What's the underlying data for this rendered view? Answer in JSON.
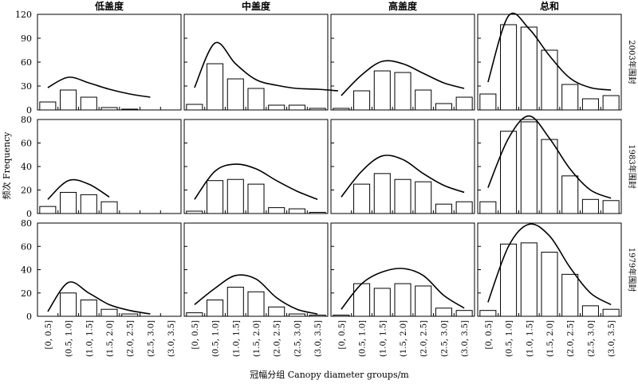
{
  "chart_data": [
    {
      "type": "bar",
      "column": "低盖度",
      "row": "2003年围封",
      "categories": [
        "[0, 0.5]",
        "(0.5, 1.0]",
        "(1.0, 1.5]",
        "(1.5, 2.0]",
        "(2.0, 2.5]",
        "(2.5, 3.0]",
        "(3.0, 3.5]"
      ],
      "values": [
        10,
        25,
        16,
        3,
        1,
        0,
        0
      ],
      "curve": [
        28,
        41,
        34,
        26,
        20,
        16
      ]
    },
    {
      "type": "bar",
      "column": "中盖度",
      "row": "2003年围封",
      "categories": [
        "[0, 0.5]",
        "(0.5, 1.0]",
        "(1.0, 1.5]",
        "(1.5, 2.0]",
        "(2.0, 2.5]",
        "(2.5, 3.0]",
        "(3.0, 3.5]"
      ],
      "values": [
        7,
        58,
        39,
        27,
        6,
        6,
        2
      ],
      "curve": [
        28,
        84,
        58,
        38,
        31,
        27,
        26,
        24
      ]
    },
    {
      "type": "bar",
      "column": "高盖度",
      "row": "2003年围封",
      "categories": [
        "[0, 0.5]",
        "(0.5, 1.0]",
        "(1.0, 1.5]",
        "(1.5, 2.0]",
        "(2.0, 2.5]",
        "(2.5, 3.0]",
        "(3.0, 3.5]"
      ],
      "values": [
        2,
        24,
        49,
        47,
        25,
        8,
        16
      ],
      "curve": [
        18,
        44,
        61,
        58,
        46,
        34,
        27
      ]
    },
    {
      "type": "bar",
      "column": "总和",
      "row": "2003年围封",
      "categories": [
        "[0, 0.5]",
        "(0.5, 1.0]",
        "(1.0, 1.5]",
        "(1.5, 2.0]",
        "(2.0, 2.5]",
        "(2.5, 3.0]",
        "(3.0, 3.5]"
      ],
      "values": [
        20,
        107,
        104,
        75,
        32,
        14,
        18
      ],
      "curve": [
        35,
        118,
        102,
        68,
        40,
        28,
        25
      ]
    },
    {
      "type": "bar",
      "column": "低盖度",
      "row": "1983年围封",
      "categories": [
        "[0, 0.5]",
        "(0.5, 1.0]",
        "(1.0, 1.5]",
        "(1.5, 2.0]",
        "(2.0, 2.5]",
        "(2.5, 3.0]",
        "(3.0, 3.5]"
      ],
      "values": [
        6,
        18,
        16,
        10,
        0,
        0,
        0
      ],
      "curve": [
        12,
        28,
        25,
        14
      ]
    },
    {
      "type": "bar",
      "column": "中盖度",
      "row": "1983年围封",
      "categories": [
        "[0, 0.5]",
        "(0.5, 1.0]",
        "(1.0, 1.5]",
        "(1.5, 2.0]",
        "(2.0, 2.5]",
        "(2.5, 3.0]",
        "(3.0, 3.5]"
      ],
      "values": [
        2,
        28,
        29,
        25,
        5,
        4,
        1
      ],
      "curve": [
        12,
        36,
        42,
        38,
        28,
        19,
        12
      ]
    },
    {
      "type": "bar",
      "column": "高盖度",
      "row": "1983年围封",
      "categories": [
        "[0, 0.5]",
        "(0.5, 1.0]",
        "(1.0, 1.5]",
        "(1.5, 2.0]",
        "(2.0, 2.5]",
        "(2.5, 3.0]",
        "(3.0, 3.5]"
      ],
      "values": [
        0,
        25,
        34,
        29,
        27,
        8,
        10
      ],
      "curve": [
        14,
        36,
        49,
        46,
        34,
        24,
        18
      ]
    },
    {
      "type": "bar",
      "column": "总和",
      "row": "1983年围封",
      "categories": [
        "[0, 0.5]",
        "(0.5, 1.0]",
        "(1.0, 1.5]",
        "(1.5, 2.0]",
        "(2.0, 2.5]",
        "(2.5, 3.0]",
        "(3.0, 3.5]"
      ],
      "values": [
        10,
        70,
        78,
        63,
        32,
        12,
        11
      ],
      "curve": [
        22,
        64,
        83,
        64,
        38,
        20,
        13
      ]
    },
    {
      "type": "bar",
      "column": "低盖度",
      "row": "1979年围封",
      "categories": [
        "[0, 0.5]",
        "(0.5, 1.0]",
        "(1.0, 1.5]",
        "(1.5, 2.0]",
        "(2.0, 2.5]",
        "(2.5, 3.0]",
        "(3.0, 3.5]"
      ],
      "values": [
        0,
        20,
        14,
        6,
        2,
        0,
        0
      ],
      "curve": [
        4,
        29,
        20,
        10,
        5,
        2
      ]
    },
    {
      "type": "bar",
      "column": "中盖度",
      "row": "1979年围封",
      "categories": [
        "[0, 0.5]",
        "(0.5, 1.0]",
        "(1.0, 1.5]",
        "(1.5, 2.0]",
        "(2.0, 2.5]",
        "(2.5, 3.0]",
        "(3.0, 3.5]"
      ],
      "values": [
        3,
        14,
        25,
        21,
        8,
        2,
        1
      ],
      "curve": [
        10,
        24,
        35,
        32,
        16,
        6,
        2
      ]
    },
    {
      "type": "bar",
      "column": "高盖度",
      "row": "1979年围封",
      "categories": [
        "[0, 0.5]",
        "(0.5, 1.0]",
        "(1.0, 1.5]",
        "(1.5, 2.0]",
        "(2.0, 2.5]",
        "(2.5, 3.0]",
        "(3.0, 3.5]"
      ],
      "values": [
        1,
        28,
        24,
        28,
        26,
        7,
        5
      ],
      "curve": [
        6,
        28,
        38,
        41,
        35,
        18,
        7
      ]
    },
    {
      "type": "bar",
      "column": "总和",
      "row": "1979年围封",
      "categories": [
        "[0, 0.5]",
        "(0.5, 1.0]",
        "(1.0, 1.5]",
        "(1.5, 2.0]",
        "(2.0, 2.5]",
        "(2.5, 3.0]",
        "(3.0, 3.5]"
      ],
      "values": [
        5,
        62,
        63,
        55,
        36,
        9,
        6
      ],
      "curve": [
        12,
        60,
        79,
        69,
        42,
        20,
        10
      ]
    }
  ],
  "columns": [
    "低盖度",
    "中盖度",
    "高盖度",
    "总和"
  ],
  "rows": [
    "2003年围封",
    "1983年围封",
    "1979年围封"
  ],
  "row_yticks": [
    [
      0,
      30,
      60,
      90,
      120
    ],
    [
      0,
      20,
      40,
      60,
      80
    ],
    [
      0,
      20,
      40,
      60,
      80
    ]
  ],
  "row_ylim": [
    [
      0,
      120
    ],
    [
      0,
      80
    ],
    [
      0,
      80
    ]
  ],
  "x_categories": [
    "[0, 0.5]",
    "(0.5, 1.0]",
    "(1.0, 1.5]",
    "(1.5, 2.0]",
    "(2.0, 2.5]",
    "(2.5, 3.0]",
    "(3.0, 3.5]"
  ],
  "ylabel": "频次 Frequency",
  "xlabel": "冠幅分组 Canopy diameter groups/m",
  "colors": {
    "bar_fill": "#ffffff",
    "stroke": "#000000"
  }
}
